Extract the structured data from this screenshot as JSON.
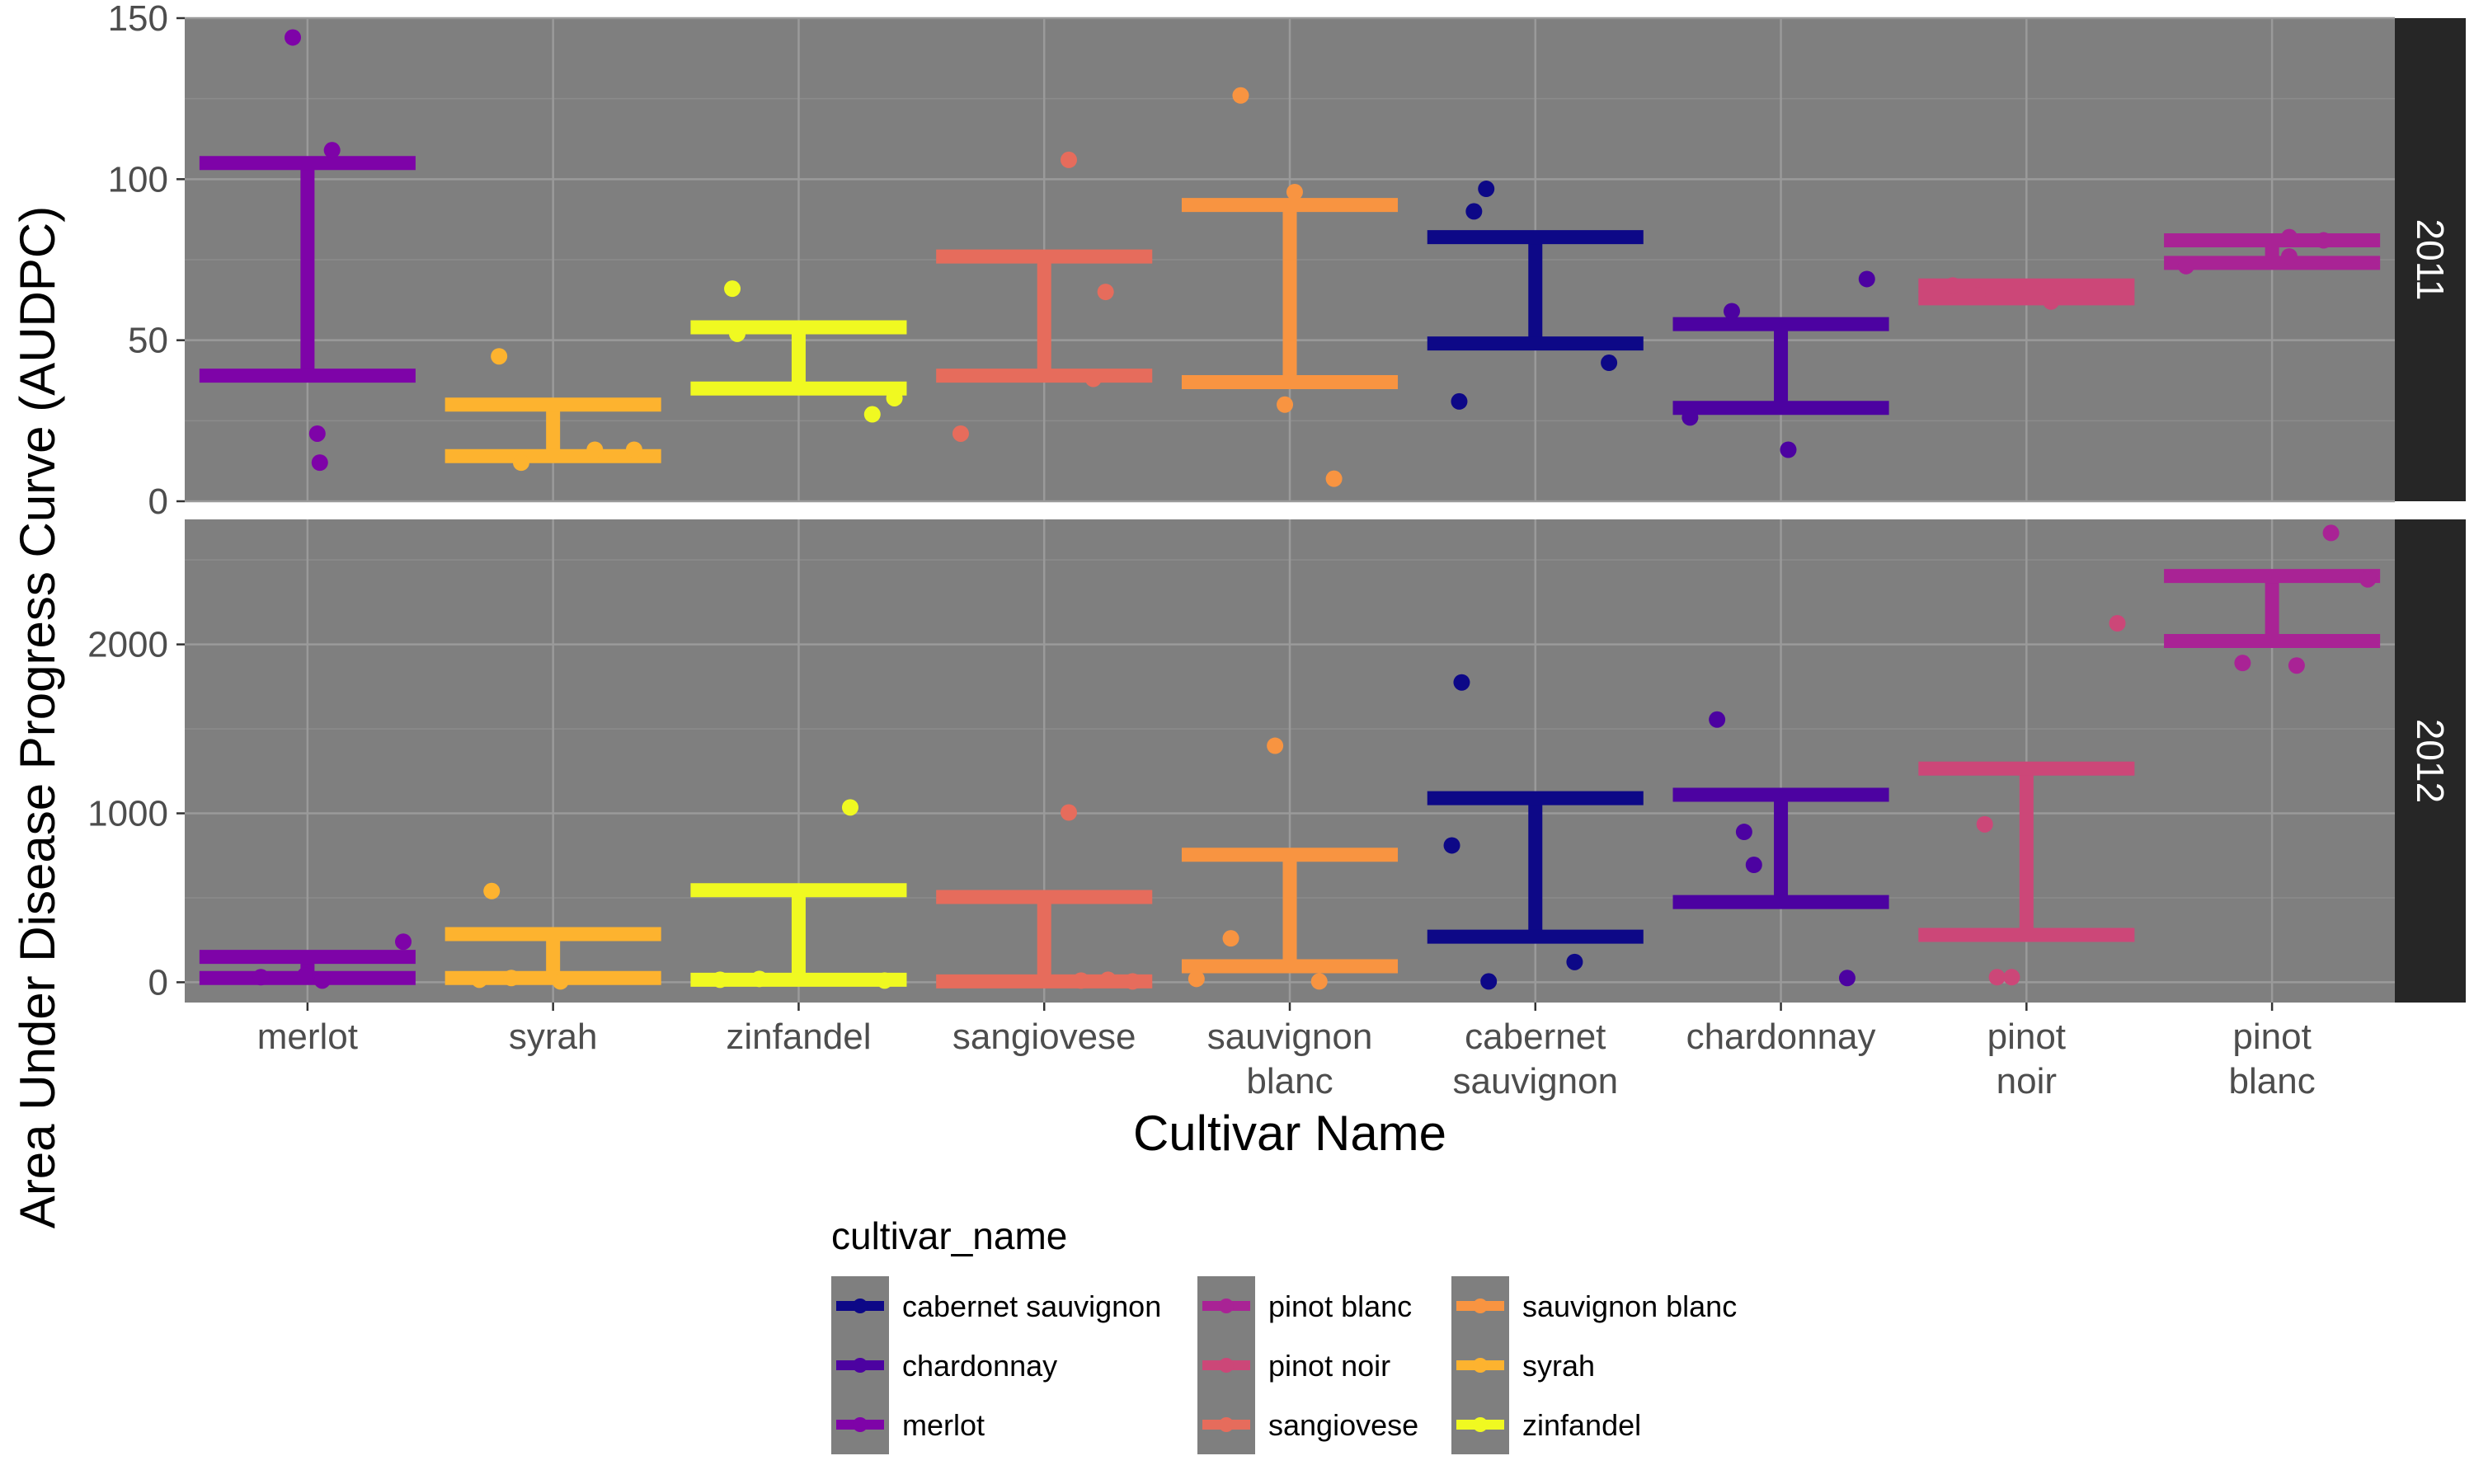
{
  "chart_data": {
    "type": "errorbar+scatter",
    "xlabel": "Cultivar Name",
    "ylabel": "Area Under Disease Progress Curve (AUDPC)",
    "legend_title": "cultivar_name",
    "legend_position": "bottom",
    "grid": true,
    "panel_background": "#7f7f7f",
    "strip_background": "#262626",
    "categories": [
      [
        "merlot"
      ],
      [
        "syrah"
      ],
      [
        "zinfandel"
      ],
      [
        "sangiovese"
      ],
      [
        "sauvignon",
        "blanc"
      ],
      [
        "cabernet",
        "sauvignon"
      ],
      [
        "chardonnay"
      ],
      [
        "pinot",
        "noir"
      ],
      [
        "pinot",
        "blanc"
      ]
    ],
    "colors": {
      "merlot": "#7e03a8",
      "syrah": "#fdb32f",
      "zinfandel": "#f0f921",
      "sangiovese": "#e66c5c",
      "sauvignon blanc": "#f89441",
      "cabernet sauvignon": "#0d0887",
      "chardonnay": "#4c02a1",
      "pinot noir": "#cc4778",
      "pinot blanc": "#a92395"
    },
    "legend": [
      [
        "cabernet sauvignon",
        "chardonnay",
        "merlot"
      ],
      [
        "pinot blanc",
        "pinot noir",
        "sangiovese"
      ],
      [
        "sauvignon blanc",
        "syrah",
        "zinfandel"
      ]
    ],
    "panels": [
      {
        "label": "2011",
        "ylim": [
          0,
          150
        ],
        "yticks": [
          0,
          50,
          100,
          150
        ],
        "bars": [
          {
            "cultivar": "merlot",
            "low": 39,
            "high": 105
          },
          {
            "cultivar": "syrah",
            "low": 14,
            "high": 30
          },
          {
            "cultivar": "zinfandel",
            "low": 35,
            "high": 54
          },
          {
            "cultivar": "sangiovese",
            "low": 39,
            "high": 76
          },
          {
            "cultivar": "sauvignon blanc",
            "low": 37,
            "high": 92
          },
          {
            "cultivar": "cabernet sauvignon",
            "low": 49,
            "high": 82
          },
          {
            "cultivar": "chardonnay",
            "low": 29,
            "high": 55
          },
          {
            "cultivar": "pinot noir",
            "low": 63,
            "high": 67
          },
          {
            "cultivar": "pinot blanc",
            "low": 74,
            "high": 81
          }
        ],
        "points": [
          {
            "cultivar": "merlot",
            "jitter": -0.06,
            "y": 144
          },
          {
            "cultivar": "merlot",
            "jitter": 0.1,
            "y": 109
          },
          {
            "cultivar": "merlot",
            "jitter": 0.04,
            "y": 21
          },
          {
            "cultivar": "merlot",
            "jitter": 0.05,
            "y": 12
          },
          {
            "cultivar": "syrah",
            "jitter": -0.22,
            "y": 45
          },
          {
            "cultivar": "syrah",
            "jitter": -0.13,
            "y": 12
          },
          {
            "cultivar": "syrah",
            "jitter": 0.17,
            "y": 16
          },
          {
            "cultivar": "syrah",
            "jitter": 0.33,
            "y": 16
          },
          {
            "cultivar": "zinfandel",
            "jitter": -0.27,
            "y": 66
          },
          {
            "cultivar": "zinfandel",
            "jitter": -0.25,
            "y": 52
          },
          {
            "cultivar": "zinfandel",
            "jitter": 0.3,
            "y": 27
          },
          {
            "cultivar": "zinfandel",
            "jitter": 0.39,
            "y": 32
          },
          {
            "cultivar": "sangiovese",
            "jitter": 0.1,
            "y": 106
          },
          {
            "cultivar": "sangiovese",
            "jitter": 0.25,
            "y": 65
          },
          {
            "cultivar": "sangiovese",
            "jitter": 0.2,
            "y": 38
          },
          {
            "cultivar": "sangiovese",
            "jitter": -0.34,
            "y": 21
          },
          {
            "cultivar": "sauvignon blanc",
            "jitter": -0.2,
            "y": 126
          },
          {
            "cultivar": "sauvignon blanc",
            "jitter": 0.02,
            "y": 96
          },
          {
            "cultivar": "sauvignon blanc",
            "jitter": -0.02,
            "y": 30
          },
          {
            "cultivar": "sauvignon blanc",
            "jitter": 0.18,
            "y": 7
          },
          {
            "cultivar": "cabernet sauvignon",
            "jitter": -0.2,
            "y": 97
          },
          {
            "cultivar": "cabernet sauvignon",
            "jitter": -0.25,
            "y": 90
          },
          {
            "cultivar": "cabernet sauvignon",
            "jitter": 0.3,
            "y": 43
          },
          {
            "cultivar": "cabernet sauvignon",
            "jitter": -0.31,
            "y": 31
          },
          {
            "cultivar": "chardonnay",
            "jitter": 0.35,
            "y": 69
          },
          {
            "cultivar": "chardonnay",
            "jitter": -0.2,
            "y": 59
          },
          {
            "cultivar": "chardonnay",
            "jitter": -0.37,
            "y": 26
          },
          {
            "cultivar": "chardonnay",
            "jitter": 0.03,
            "y": 16
          },
          {
            "cultivar": "pinot noir",
            "jitter": -0.3,
            "y": 67
          },
          {
            "cultivar": "pinot noir",
            "jitter": -0.2,
            "y": 64
          },
          {
            "cultivar": "pinot noir",
            "jitter": 0.1,
            "y": 62
          },
          {
            "cultivar": "pinot blanc",
            "jitter": -0.35,
            "y": 73
          },
          {
            "cultivar": "pinot blanc",
            "jitter": 0.07,
            "y": 82
          },
          {
            "cultivar": "pinot blanc",
            "jitter": 0.21,
            "y": 81
          },
          {
            "cultivar": "pinot blanc",
            "jitter": 0.07,
            "y": 76
          }
        ]
      },
      {
        "label": "2012",
        "ylim": [
          -120,
          2740
        ],
        "yticks": [
          0,
          1000,
          2000
        ],
        "bars": [
          {
            "cultivar": "merlot",
            "low": 25,
            "high": 150
          },
          {
            "cultivar": "syrah",
            "low": 25,
            "high": 285
          },
          {
            "cultivar": "zinfandel",
            "low": 15,
            "high": 545
          },
          {
            "cultivar": "sangiovese",
            "low": 5,
            "high": 505
          },
          {
            "cultivar": "sauvignon blanc",
            "low": 95,
            "high": 755
          },
          {
            "cultivar": "cabernet sauvignon",
            "low": 270,
            "high": 1090
          },
          {
            "cultivar": "chardonnay",
            "low": 475,
            "high": 1110
          },
          {
            "cultivar": "pinot noir",
            "low": 280,
            "high": 1265
          },
          {
            "cultivar": "pinot blanc",
            "low": 2020,
            "high": 2405
          }
        ],
        "points": [
          {
            "cultivar": "merlot",
            "jitter": -0.19,
            "y": 30
          },
          {
            "cultivar": "merlot",
            "jitter": -0.01,
            "y": 40
          },
          {
            "cultivar": "merlot",
            "jitter": 0.06,
            "y": 10
          },
          {
            "cultivar": "merlot",
            "jitter": 0.39,
            "y": 240
          },
          {
            "cultivar": "syrah",
            "jitter": -0.25,
            "y": 540
          },
          {
            "cultivar": "syrah",
            "jitter": -0.3,
            "y": 15
          },
          {
            "cultivar": "syrah",
            "jitter": -0.17,
            "y": 25
          },
          {
            "cultivar": "syrah",
            "jitter": 0.03,
            "y": 5
          },
          {
            "cultivar": "zinfandel",
            "jitter": 0.21,
            "y": 1035
          },
          {
            "cultivar": "zinfandel",
            "jitter": -0.32,
            "y": 15
          },
          {
            "cultivar": "zinfandel",
            "jitter": -0.16,
            "y": 20
          },
          {
            "cultivar": "zinfandel",
            "jitter": 0.35,
            "y": 10
          },
          {
            "cultivar": "sangiovese",
            "jitter": 0.1,
            "y": 1005
          },
          {
            "cultivar": "sangiovese",
            "jitter": 0.15,
            "y": 10
          },
          {
            "cultivar": "sangiovese",
            "jitter": 0.26,
            "y": 15
          },
          {
            "cultivar": "sangiovese",
            "jitter": 0.36,
            "y": 5
          },
          {
            "cultivar": "sauvignon blanc",
            "jitter": -0.06,
            "y": 1400
          },
          {
            "cultivar": "sauvignon blanc",
            "jitter": -0.24,
            "y": 260
          },
          {
            "cultivar": "sauvignon blanc",
            "jitter": -0.38,
            "y": 20
          },
          {
            "cultivar": "sauvignon blanc",
            "jitter": 0.12,
            "y": 5
          },
          {
            "cultivar": "cabernet sauvignon",
            "jitter": -0.3,
            "y": 1775
          },
          {
            "cultivar": "cabernet sauvignon",
            "jitter": -0.34,
            "y": 810
          },
          {
            "cultivar": "cabernet sauvignon",
            "jitter": 0.16,
            "y": 120
          },
          {
            "cultivar": "cabernet sauvignon",
            "jitter": -0.19,
            "y": 5
          },
          {
            "cultivar": "chardonnay",
            "jitter": -0.26,
            "y": 1555
          },
          {
            "cultivar": "chardonnay",
            "jitter": -0.15,
            "y": 890
          },
          {
            "cultivar": "chardonnay",
            "jitter": -0.11,
            "y": 695
          },
          {
            "cultivar": "chardonnay",
            "jitter": 0.27,
            "y": 25
          },
          {
            "cultivar": "pinot noir",
            "jitter": 0.37,
            "y": 2125
          },
          {
            "cultivar": "pinot noir",
            "jitter": -0.17,
            "y": 935
          },
          {
            "cultivar": "pinot noir",
            "jitter": -0.12,
            "y": 30
          },
          {
            "cultivar": "pinot noir",
            "jitter": -0.06,
            "y": 30
          },
          {
            "cultivar": "pinot blanc",
            "jitter": 0.24,
            "y": 2660
          },
          {
            "cultivar": "pinot blanc",
            "jitter": 0.39,
            "y": 2385
          },
          {
            "cultivar": "pinot blanc",
            "jitter": -0.12,
            "y": 1890
          },
          {
            "cultivar": "pinot blanc",
            "jitter": 0.1,
            "y": 1875
          }
        ]
      }
    ]
  }
}
